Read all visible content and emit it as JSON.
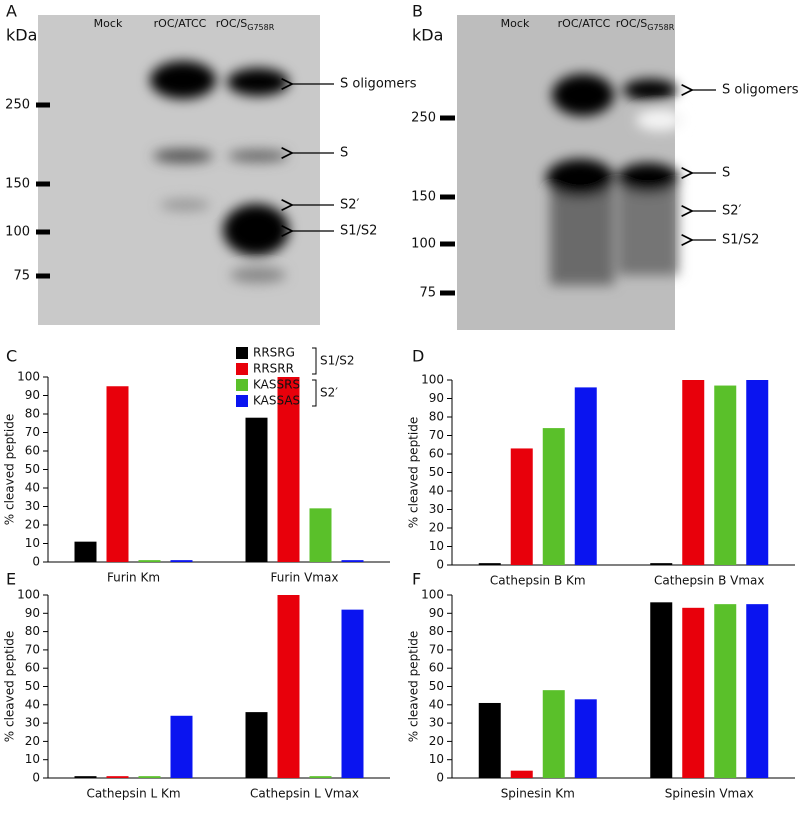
{
  "panels": [
    {
      "label": "A",
      "unit": "kDa",
      "lanes": [
        "Mock",
        "rOC/ATCC",
        "rOC/S"
      ],
      "lane_subscript": "G758R",
      "markers": [
        "250",
        "150",
        "100",
        "75"
      ],
      "bands": [
        "S oligomers",
        "S",
        "S2′",
        "S1/S2"
      ]
    },
    {
      "label": "B",
      "unit": "kDa",
      "lanes": [
        "Mock",
        "rOC/ATCC",
        "rOC/S"
      ],
      "lane_subscript": "G758R",
      "markers": [
        "250",
        "150",
        "100",
        "75"
      ],
      "bands": [
        "S oligomers",
        "S",
        "S2′",
        "S1/S2"
      ]
    }
  ],
  "chart_data": [
    {
      "type": "bar",
      "label": "C",
      "y_label": "% cleaved peptide",
      "categories": [
        "Furin Km",
        "Furin Vmax"
      ],
      "series": [
        {
          "name": "RRSRG",
          "color": "#000000",
          "values": [
            11,
            78
          ]
        },
        {
          "name": "RRSRR",
          "color": "#e8000b",
          "values": [
            95,
            100
          ]
        },
        {
          "name": "KASSRS",
          "color": "#5ac02a",
          "values": [
            1,
            29
          ]
        },
        {
          "name": "KASSAS",
          "color": "#0a14f0",
          "values": [
            1,
            1
          ]
        }
      ],
      "legend_groups": [
        "S1/S2",
        "S2′"
      ],
      "ylim": [
        0,
        100
      ],
      "yticks": [
        0,
        10,
        20,
        30,
        40,
        50,
        60,
        70,
        80,
        90,
        100
      ]
    },
    {
      "type": "bar",
      "label": "D",
      "y_label": "% cleaved peptide",
      "categories": [
        "Cathepsin B Km",
        "Cathepsin B Vmax"
      ],
      "series": [
        {
          "color": "#000000",
          "values": [
            1,
            1
          ]
        },
        {
          "color": "#e8000b",
          "values": [
            63,
            100
          ]
        },
        {
          "color": "#5ac02a",
          "values": [
            74,
            97
          ]
        },
        {
          "color": "#0a14f0",
          "values": [
            96,
            100
          ]
        }
      ],
      "ylim": [
        0,
        100
      ],
      "yticks": [
        0,
        10,
        20,
        30,
        40,
        50,
        60,
        70,
        80,
        90,
        100
      ]
    },
    {
      "type": "bar",
      "label": "E",
      "y_label": "% cleaved peptide",
      "categories": [
        "Cathepsin L Km",
        "Cathepsin L Vmax"
      ],
      "series": [
        {
          "color": "#000000",
          "values": [
            1,
            36
          ]
        },
        {
          "color": "#e8000b",
          "values": [
            1,
            100
          ]
        },
        {
          "color": "#5ac02a",
          "values": [
            1,
            1
          ]
        },
        {
          "color": "#0a14f0",
          "values": [
            34,
            92
          ]
        }
      ],
      "ylim": [
        0,
        100
      ],
      "yticks": [
        0,
        10,
        20,
        30,
        40,
        50,
        60,
        70,
        80,
        90,
        100
      ]
    },
    {
      "type": "bar",
      "label": "F",
      "y_label": "% cleaved peptide",
      "categories": [
        "Spinesin Km",
        "Spinesin Vmax"
      ],
      "series": [
        {
          "color": "#000000",
          "values": [
            41,
            96
          ]
        },
        {
          "color": "#e8000b",
          "values": [
            4,
            93
          ]
        },
        {
          "color": "#5ac02a",
          "values": [
            48,
            95
          ]
        },
        {
          "color": "#0a14f0",
          "values": [
            43,
            95
          ]
        }
      ],
      "ylim": [
        0,
        100
      ],
      "yticks": [
        0,
        10,
        20,
        30,
        40,
        50,
        60,
        70,
        80,
        90,
        100
      ]
    }
  ]
}
